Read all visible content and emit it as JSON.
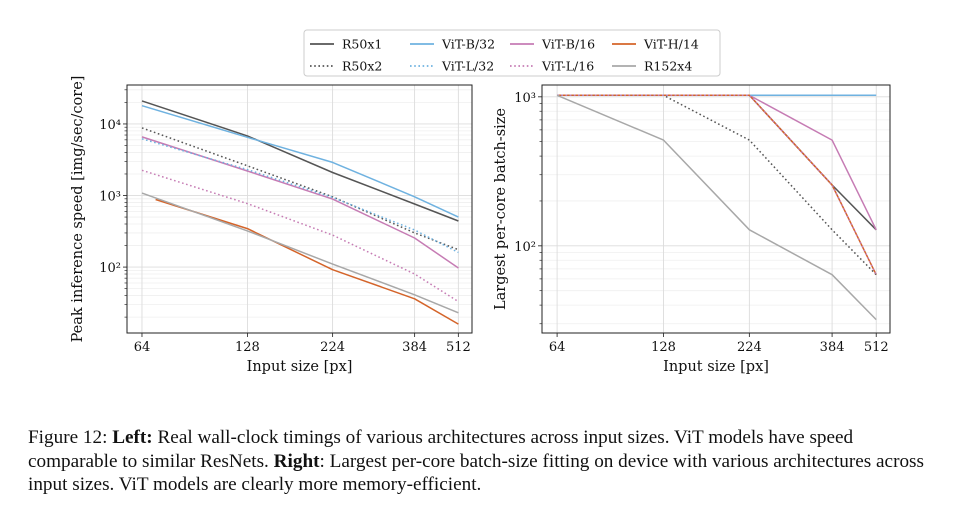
{
  "legend": [
    {
      "name": "R50x1",
      "color": "#555555",
      "dash": "solid"
    },
    {
      "name": "ViT-B/32",
      "color": "#6fb2e0",
      "dash": "solid"
    },
    {
      "name": "ViT-B/16",
      "color": "#c67cb4",
      "dash": "solid"
    },
    {
      "name": "ViT-H/14",
      "color": "#d4642a",
      "dash": "solid"
    },
    {
      "name": "R50x2",
      "color": "#555555",
      "dash": "dotted"
    },
    {
      "name": "ViT-L/32",
      "color": "#6fb2e0",
      "dash": "dotted"
    },
    {
      "name": "ViT-L/16",
      "color": "#c67cb4",
      "dash": "dotted"
    },
    {
      "name": "R152x4",
      "color": "#a8a8a8",
      "dash": "solid"
    }
  ],
  "chart_data": [
    {
      "type": "line",
      "xlabel": "Input size [px]",
      "ylabel": "Peak inference speed [img/sec/core]",
      "x_scale": "log",
      "y_scale": "log",
      "x_ticks": [
        64,
        128,
        224,
        384,
        512
      ],
      "y_ticks": [
        {
          "value": 100,
          "label": "10²"
        },
        {
          "value": 1000,
          "label": "10³"
        },
        {
          "value": 10000,
          "label": "10⁴"
        }
      ],
      "xlim": [
        58,
        560
      ],
      "ylim": [
        12,
        35000
      ],
      "grid": true,
      "series": [
        {
          "name": "R50x1",
          "x": [
            64,
            128,
            224,
            384,
            512
          ],
          "y": [
            21000,
            6800,
            2100,
            760,
            440
          ]
        },
        {
          "name": "ViT-B/32",
          "x": [
            64,
            128,
            224,
            384,
            512
          ],
          "y": [
            18000,
            6500,
            2900,
            960,
            500
          ]
        },
        {
          "name": "ViT-B/16",
          "x": [
            64,
            128,
            224,
            384,
            512
          ],
          "y": [
            6600,
            2200,
            890,
            255,
            97
          ]
        },
        {
          "name": "ViT-H/14",
          "x": [
            70,
            128,
            224,
            384,
            512
          ],
          "y": [
            880,
            345,
            92,
            36,
            16
          ]
        },
        {
          "name": "R50x2",
          "x": [
            64,
            128,
            224,
            384,
            512
          ],
          "y": [
            8800,
            2600,
            960,
            300,
            175
          ]
        },
        {
          "name": "ViT-L/32",
          "x": [
            64,
            128,
            224,
            384,
            512
          ],
          "y": [
            6200,
            2300,
            940,
            330,
            160
          ]
        },
        {
          "name": "ViT-L/16",
          "x": [
            64,
            128,
            224,
            384,
            512
          ],
          "y": [
            2250,
            770,
            280,
            80,
            33
          ]
        },
        {
          "name": "R152x4",
          "x": [
            64,
            128,
            224,
            384,
            512
          ],
          "y": [
            1080,
            320,
            110,
            41,
            23
          ]
        }
      ]
    },
    {
      "type": "line",
      "xlabel": "Input size [px]",
      "ylabel": "Largest per-core batch-size",
      "x_scale": "log",
      "y_scale": "log",
      "x_ticks": [
        64,
        128,
        224,
        384,
        512
      ],
      "y_ticks": [
        {
          "value": 100,
          "label": "10²"
        },
        {
          "value": 1000,
          "label": "10³"
        }
      ],
      "xlim": [
        58,
        560
      ],
      "ylim": [
        26,
        1200
      ],
      "grid": true,
      "series": [
        {
          "name": "R50x1",
          "x": [
            64,
            128,
            224,
            384,
            512
          ],
          "y": [
            1024,
            1024,
            1024,
            256,
            128
          ]
        },
        {
          "name": "ViT-B/32",
          "x": [
            64,
            128,
            224,
            384,
            512
          ],
          "y": [
            1024,
            1024,
            1024,
            1024,
            1024
          ]
        },
        {
          "name": "ViT-B/16",
          "x": [
            64,
            128,
            224,
            384,
            512
          ],
          "y": [
            1024,
            1024,
            1024,
            512,
            128
          ]
        },
        {
          "name": "ViT-H/14",
          "x": [
            64,
            128,
            224,
            384,
            512
          ],
          "y": [
            1024,
            1024,
            1024,
            256,
            64
          ]
        },
        {
          "name": "R50x2",
          "x": [
            64,
            128,
            224,
            384,
            512
          ],
          "y": [
            1024,
            1024,
            512,
            128,
            64
          ]
        },
        {
          "name": "ViT-L/32",
          "x": [
            64,
            128,
            224,
            384,
            512
          ],
          "y": [
            1024,
            1024,
            1024,
            1024,
            1024
          ]
        },
        {
          "name": "ViT-L/16",
          "x": [
            64,
            128,
            224,
            384,
            512
          ],
          "y": [
            1024,
            1024,
            1024,
            256,
            64
          ]
        },
        {
          "name": "R152x4",
          "x": [
            64,
            128,
            224,
            384,
            512
          ],
          "y": [
            1024,
            512,
            128,
            64,
            32
          ]
        }
      ]
    }
  ],
  "caption": {
    "prefix": "Figure 12: ",
    "left_bold": "Left:",
    "left_text": " Real wall-clock timings of various architectures across input sizes. ViT models have speed comparable to similar ResNets. ",
    "right_bold": "Right",
    "right_text": ": Largest per-core batch-size fitting on device with various architectures across input sizes. ViT models are clearly more memory-efficient."
  }
}
